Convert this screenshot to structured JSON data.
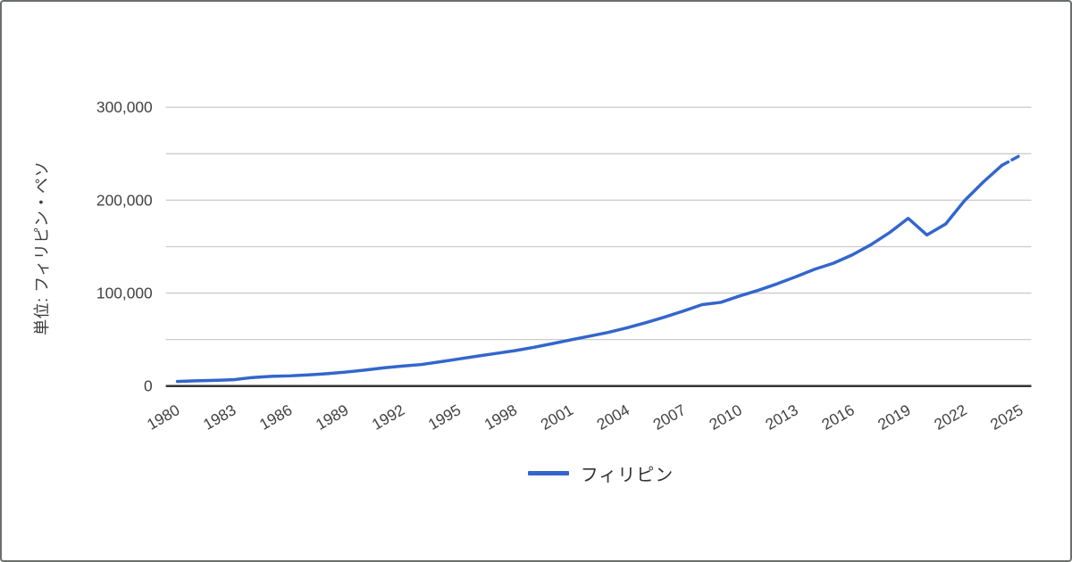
{
  "chart": {
    "legend": {
      "label": "フィリピン"
    },
    "y_axis": {
      "title": "単位: フィリピン・ペソ",
      "tick_values": [
        0,
        100000,
        200000,
        300000
      ],
      "tick_labels": [
        "0",
        "100,000",
        "200,000",
        "300,000"
      ],
      "gridline_values": [
        50000,
        100000,
        150000,
        200000,
        250000,
        300000
      ]
    },
    "x_axis": {
      "tick_years": [
        1980,
        1983,
        1986,
        1989,
        1992,
        1995,
        1998,
        2001,
        2004,
        2007,
        2010,
        2013,
        2016,
        2019,
        2022,
        2025
      ]
    },
    "colors": {
      "series": "#3366cc",
      "gridline": "#cccccc",
      "axis": "#333333",
      "tick_text": "#424242",
      "border": "#6b6f6c"
    }
  },
  "chart_data": {
    "type": "line",
    "title": "",
    "xlabel": "",
    "ylabel": "単位: フィリピン・ペソ",
    "ylim": [
      0,
      300000
    ],
    "grid": true,
    "legend_position": "bottom",
    "x_range": [
      1980,
      2025
    ],
    "series": [
      {
        "name": "フィリピン",
        "x": [
          1980,
          1981,
          1982,
          1983,
          1984,
          1985,
          1986,
          1987,
          1988,
          1989,
          1990,
          1991,
          1992,
          1993,
          1994,
          1995,
          1996,
          1997,
          1998,
          1999,
          2000,
          2001,
          2002,
          2003,
          2004,
          2005,
          2006,
          2007,
          2008,
          2009,
          2010,
          2011,
          2012,
          2013,
          2014,
          2015,
          2016,
          2017,
          2018,
          2019,
          2020,
          2021,
          2022,
          2023,
          2024,
          2025
        ],
        "values": [
          5000,
          5600,
          6100,
          6900,
          9200,
          10400,
          11000,
          12000,
          13400,
          15100,
          17200,
          19600,
          21500,
          23100,
          26000,
          29100,
          32100,
          35100,
          38100,
          41600,
          45600,
          49700,
          53700,
          57800,
          62700,
          68200,
          74200,
          80700,
          87600,
          90000,
          96900,
          103000,
          110000,
          117600,
          125600,
          132100,
          141000,
          152000,
          165000,
          180500,
          162500,
          174500,
          199500,
          219500,
          237500,
          248500
        ],
        "dashed_from_x": 2024
      }
    ]
  }
}
